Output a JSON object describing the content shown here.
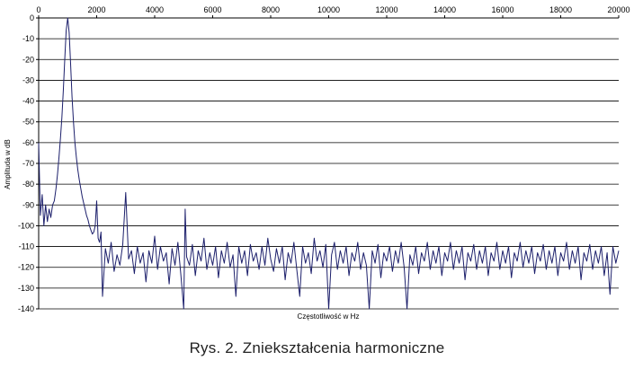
{
  "chart_data": {
    "type": "line",
    "title": "",
    "xlabel": "Częstotliwość w Hz",
    "ylabel": "Amplituda w dB",
    "xlim": [
      0,
      20000
    ],
    "ylim": [
      -140,
      0
    ],
    "xticks": [
      0,
      2000,
      4000,
      6000,
      8000,
      10000,
      12000,
      14000,
      16000,
      18000,
      20000
    ],
    "yticks": [
      0,
      -10,
      -20,
      -30,
      -40,
      -50,
      -60,
      -70,
      -80,
      -90,
      -100,
      -110,
      -120,
      -130,
      -140
    ],
    "grid": "horizontal",
    "line_color": "#1c1f6b",
    "series": [
      {
        "points": [
          [
            0,
            -60
          ],
          [
            60,
            -95
          ],
          [
            120,
            -85
          ],
          [
            180,
            -100
          ],
          [
            240,
            -90
          ],
          [
            300,
            -98
          ],
          [
            360,
            -92
          ],
          [
            420,
            -96
          ],
          [
            480,
            -90
          ],
          [
            540,
            -88
          ],
          [
            600,
            -82
          ],
          [
            650,
            -75
          ],
          [
            700,
            -67
          ],
          [
            750,
            -58
          ],
          [
            800,
            -48
          ],
          [
            850,
            -35
          ],
          [
            900,
            -20
          ],
          [
            950,
            -6
          ],
          [
            1000,
            0
          ],
          [
            1050,
            -7
          ],
          [
            1100,
            -22
          ],
          [
            1150,
            -38
          ],
          [
            1200,
            -50
          ],
          [
            1250,
            -60
          ],
          [
            1300,
            -67
          ],
          [
            1350,
            -73
          ],
          [
            1400,
            -78
          ],
          [
            1450,
            -82
          ],
          [
            1500,
            -86
          ],
          [
            1550,
            -89
          ],
          [
            1600,
            -92
          ],
          [
            1650,
            -95
          ],
          [
            1700,
            -97
          ],
          [
            1750,
            -100
          ],
          [
            1800,
            -102
          ],
          [
            1850,
            -104
          ],
          [
            1900,
            -103
          ],
          [
            1950,
            -100
          ],
          [
            2000,
            -88
          ],
          [
            2050,
            -106
          ],
          [
            2100,
            -108
          ],
          [
            2150,
            -103
          ],
          [
            2200,
            -134
          ],
          [
            2300,
            -111
          ],
          [
            2400,
            -118
          ],
          [
            2500,
            -108
          ],
          [
            2600,
            -122
          ],
          [
            2700,
            -114
          ],
          [
            2800,
            -119
          ],
          [
            2900,
            -109
          ],
          [
            3000,
            -84
          ],
          [
            3100,
            -116
          ],
          [
            3200,
            -112
          ],
          [
            3300,
            -123
          ],
          [
            3400,
            -110
          ],
          [
            3500,
            -118
          ],
          [
            3600,
            -113
          ],
          [
            3700,
            -127
          ],
          [
            3800,
            -112
          ],
          [
            3900,
            -118
          ],
          [
            4000,
            -105
          ],
          [
            4100,
            -121
          ],
          [
            4200,
            -110
          ],
          [
            4300,
            -117
          ],
          [
            4400,
            -113
          ],
          [
            4500,
            -128
          ],
          [
            4600,
            -111
          ],
          [
            4700,
            -119
          ],
          [
            4800,
            -108
          ],
          [
            4900,
            -123
          ],
          [
            5000,
            -140
          ],
          [
            5050,
            -92
          ],
          [
            5100,
            -115
          ],
          [
            5200,
            -119
          ],
          [
            5300,
            -109
          ],
          [
            5400,
            -124
          ],
          [
            5500,
            -112
          ],
          [
            5600,
            -117
          ],
          [
            5700,
            -106
          ],
          [
            5800,
            -121
          ],
          [
            5900,
            -113
          ],
          [
            6000,
            -119
          ],
          [
            6100,
            -110
          ],
          [
            6200,
            -125
          ],
          [
            6300,
            -112
          ],
          [
            6400,
            -118
          ],
          [
            6500,
            -108
          ],
          [
            6600,
            -120
          ],
          [
            6700,
            -114
          ],
          [
            6800,
            -134
          ],
          [
            6900,
            -110
          ],
          [
            7000,
            -118
          ],
          [
            7100,
            -112
          ],
          [
            7200,
            -124
          ],
          [
            7300,
            -109
          ],
          [
            7400,
            -117
          ],
          [
            7500,
            -113
          ],
          [
            7600,
            -121
          ],
          [
            7700,
            -110
          ],
          [
            7800,
            -119
          ],
          [
            7900,
            -106
          ],
          [
            8000,
            -116
          ],
          [
            8100,
            -122
          ],
          [
            8200,
            -111
          ],
          [
            8300,
            -118
          ],
          [
            8400,
            -110
          ],
          [
            8500,
            -126
          ],
          [
            8600,
            -113
          ],
          [
            8700,
            -118
          ],
          [
            8800,
            -108
          ],
          [
            8900,
            -121
          ],
          [
            9000,
            -134
          ],
          [
            9100,
            -110
          ],
          [
            9200,
            -118
          ],
          [
            9300,
            -113
          ],
          [
            9400,
            -123
          ],
          [
            9500,
            -106
          ],
          [
            9600,
            -117
          ],
          [
            9700,
            -112
          ],
          [
            9800,
            -120
          ],
          [
            9900,
            -109
          ],
          [
            10000,
            -140
          ],
          [
            10100,
            -114
          ],
          [
            10200,
            -108
          ],
          [
            10300,
            -121
          ],
          [
            10400,
            -112
          ],
          [
            10500,
            -118
          ],
          [
            10600,
            -110
          ],
          [
            10700,
            -124
          ],
          [
            10800,
            -113
          ],
          [
            10900,
            -117
          ],
          [
            11000,
            -108
          ],
          [
            11100,
            -121
          ],
          [
            11200,
            -113
          ],
          [
            11300,
            -119
          ],
          [
            11400,
            -140
          ],
          [
            11500,
            -112
          ],
          [
            11600,
            -118
          ],
          [
            11700,
            -109
          ],
          [
            11800,
            -125
          ],
          [
            11900,
            -113
          ],
          [
            12000,
            -117
          ],
          [
            12100,
            -110
          ],
          [
            12200,
            -122
          ],
          [
            12300,
            -112
          ],
          [
            12400,
            -118
          ],
          [
            12500,
            -108
          ],
          [
            12600,
            -120
          ],
          [
            12700,
            -140
          ],
          [
            12800,
            -114
          ],
          [
            12900,
            -119
          ],
          [
            13000,
            -110
          ],
          [
            13100,
            -123
          ],
          [
            13200,
            -113
          ],
          [
            13300,
            -117
          ],
          [
            13400,
            -108
          ],
          [
            13500,
            -121
          ],
          [
            13600,
            -112
          ],
          [
            13700,
            -118
          ],
          [
            13800,
            -110
          ],
          [
            13900,
            -124
          ],
          [
            14000,
            -113
          ],
          [
            14100,
            -117
          ],
          [
            14200,
            -108
          ],
          [
            14300,
            -121
          ],
          [
            14400,
            -112
          ],
          [
            14500,
            -118
          ],
          [
            14600,
            -110
          ],
          [
            14700,
            -126
          ],
          [
            14800,
            -113
          ],
          [
            14900,
            -117
          ],
          [
            15000,
            -109
          ],
          [
            15100,
            -121
          ],
          [
            15200,
            -112
          ],
          [
            15300,
            -118
          ],
          [
            15400,
            -110
          ],
          [
            15500,
            -124
          ],
          [
            15600,
            -113
          ],
          [
            15700,
            -117
          ],
          [
            15800,
            -108
          ],
          [
            15900,
            -121
          ],
          [
            16000,
            -112
          ],
          [
            16100,
            -118
          ],
          [
            16200,
            -110
          ],
          [
            16300,
            -125
          ],
          [
            16400,
            -113
          ],
          [
            16500,
            -117
          ],
          [
            16600,
            -108
          ],
          [
            16700,
            -120
          ],
          [
            16800,
            -112
          ],
          [
            16900,
            -118
          ],
          [
            17000,
            -110
          ],
          [
            17100,
            -123
          ],
          [
            17200,
            -113
          ],
          [
            17300,
            -117
          ],
          [
            17400,
            -109
          ],
          [
            17500,
            -121
          ],
          [
            17600,
            -112
          ],
          [
            17700,
            -118
          ],
          [
            17800,
            -110
          ],
          [
            17900,
            -124
          ],
          [
            18000,
            -113
          ],
          [
            18100,
            -117
          ],
          [
            18200,
            -108
          ],
          [
            18300,
            -121
          ],
          [
            18400,
            -112
          ],
          [
            18500,
            -118
          ],
          [
            18600,
            -110
          ],
          [
            18700,
            -126
          ],
          [
            18800,
            -113
          ],
          [
            18900,
            -117
          ],
          [
            19000,
            -109
          ],
          [
            19100,
            -121
          ],
          [
            19200,
            -112
          ],
          [
            19300,
            -118
          ],
          [
            19400,
            -110
          ],
          [
            19500,
            -124
          ],
          [
            19600,
            -113
          ],
          [
            19700,
            -133
          ],
          [
            19800,
            -110
          ],
          [
            19900,
            -118
          ],
          [
            20000,
            -112
          ]
        ]
      }
    ]
  },
  "caption": "Rys. 2. Zniekształcenia harmoniczne"
}
